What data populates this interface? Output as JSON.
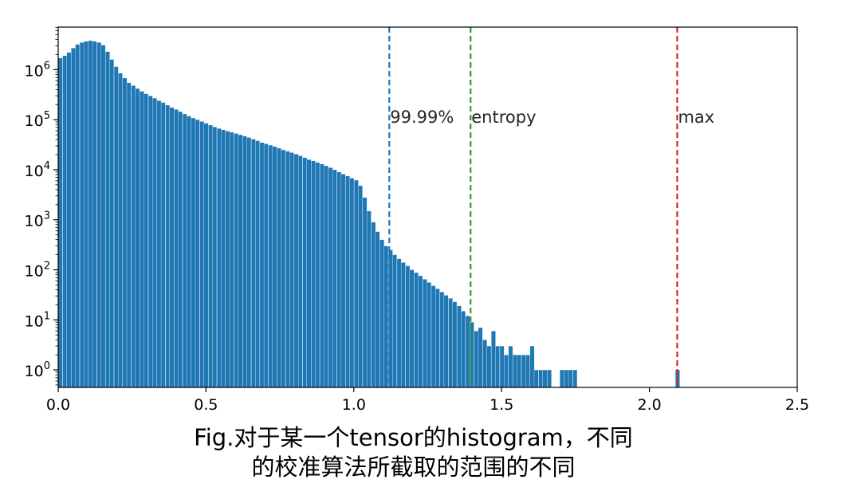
{
  "chart_data": {
    "type": "bar",
    "yscale": "log",
    "xlim": [
      0.0,
      2.5
    ],
    "ylim_log10": [
      -0.35,
      6.85
    ],
    "bin_width": 0.0145,
    "x_ticks": [
      "0.0",
      "0.5",
      "1.0",
      "1.5",
      "2.0",
      "2.5"
    ],
    "x_tick_values": [
      0.0,
      0.5,
      1.0,
      1.5,
      2.0,
      2.5
    ],
    "y_ticks": [
      {
        "base": "10",
        "exp": "0",
        "value": 0
      },
      {
        "base": "10",
        "exp": "1",
        "value": 1
      },
      {
        "base": "10",
        "exp": "2",
        "value": 2
      },
      {
        "base": "10",
        "exp": "3",
        "value": 3
      },
      {
        "base": "10",
        "exp": "4",
        "value": 4
      },
      {
        "base": "10",
        "exp": "5",
        "value": 5
      },
      {
        "base": "10",
        "exp": "6",
        "value": 6
      }
    ],
    "bar_color": "#1f77b4",
    "bins": [
      [
        0.0,
        1700000
      ],
      [
        0.015,
        1900000
      ],
      [
        0.029,
        2200000
      ],
      [
        0.044,
        2700000
      ],
      [
        0.058,
        3200000
      ],
      [
        0.073,
        3500000
      ],
      [
        0.087,
        3700000
      ],
      [
        0.102,
        3800000
      ],
      [
        0.116,
        3700000
      ],
      [
        0.131,
        3500000
      ],
      [
        0.145,
        3100000
      ],
      [
        0.16,
        2300000
      ],
      [
        0.174,
        1600000
      ],
      [
        0.189,
        1150000
      ],
      [
        0.203,
        850000
      ],
      [
        0.218,
        680000
      ],
      [
        0.232,
        550000
      ],
      [
        0.247,
        480000
      ],
      [
        0.261,
        420000
      ],
      [
        0.276,
        370000
      ],
      [
        0.29,
        330000
      ],
      [
        0.305,
        300000
      ],
      [
        0.319,
        270000
      ],
      [
        0.334,
        240000
      ],
      [
        0.348,
        220000
      ],
      [
        0.363,
        195000
      ],
      [
        0.377,
        175000
      ],
      [
        0.392,
        160000
      ],
      [
        0.406,
        145000
      ],
      [
        0.421,
        130000
      ],
      [
        0.435,
        118000
      ],
      [
        0.45,
        108000
      ],
      [
        0.464,
        100000
      ],
      [
        0.479,
        92000
      ],
      [
        0.493,
        85000
      ],
      [
        0.508,
        78000
      ],
      [
        0.522,
        72000
      ],
      [
        0.537,
        67000
      ],
      [
        0.551,
        63000
      ],
      [
        0.566,
        59000
      ],
      [
        0.58,
        56000
      ],
      [
        0.595,
        53000
      ],
      [
        0.609,
        50000
      ],
      [
        0.624,
        47000
      ],
      [
        0.638,
        44000
      ],
      [
        0.653,
        41000
      ],
      [
        0.667,
        38000
      ],
      [
        0.682,
        35000
      ],
      [
        0.696,
        33000
      ],
      [
        0.711,
        31000
      ],
      [
        0.725,
        29000
      ],
      [
        0.74,
        27000
      ],
      [
        0.754,
        25000
      ],
      [
        0.769,
        23500
      ],
      [
        0.783,
        22000
      ],
      [
        0.798,
        20500
      ],
      [
        0.812,
        19000
      ],
      [
        0.827,
        17500
      ],
      [
        0.841,
        16000
      ],
      [
        0.856,
        15000
      ],
      [
        0.87,
        14000
      ],
      [
        0.885,
        13000
      ],
      [
        0.899,
        12000
      ],
      [
        0.914,
        11000
      ],
      [
        0.928,
        10000
      ],
      [
        0.943,
        9000
      ],
      [
        0.957,
        8200
      ],
      [
        0.972,
        7500
      ],
      [
        0.986,
        6800
      ],
      [
        1.001,
        6200
      ],
      [
        1.015,
        4800
      ],
      [
        1.03,
        2800
      ],
      [
        1.044,
        1500
      ],
      [
        1.059,
        900
      ],
      [
        1.073,
        580
      ],
      [
        1.088,
        400
      ],
      [
        1.102,
        300
      ],
      [
        1.117,
        250
      ],
      [
        1.131,
        200
      ],
      [
        1.146,
        165
      ],
      [
        1.16,
        140
      ],
      [
        1.175,
        120
      ],
      [
        1.189,
        100
      ],
      [
        1.204,
        88
      ],
      [
        1.218,
        76
      ],
      [
        1.233,
        65
      ],
      [
        1.247,
        56
      ],
      [
        1.262,
        48
      ],
      [
        1.276,
        42
      ],
      [
        1.291,
        36
      ],
      [
        1.305,
        31
      ],
      [
        1.32,
        27
      ],
      [
        1.334,
        23
      ],
      [
        1.349,
        19
      ],
      [
        1.363,
        15
      ],
      [
        1.378,
        12
      ],
      [
        1.392,
        9
      ],
      [
        1.407,
        6
      ],
      [
        1.421,
        7
      ],
      [
        1.436,
        4
      ],
      [
        1.45,
        3
      ],
      [
        1.465,
        6
      ],
      [
        1.479,
        3
      ],
      [
        1.494,
        3
      ],
      [
        1.508,
        2
      ],
      [
        1.523,
        3
      ],
      [
        1.538,
        2
      ],
      [
        1.552,
        2
      ],
      [
        1.567,
        2
      ],
      [
        1.581,
        2
      ],
      [
        1.596,
        3
      ],
      [
        1.61,
        1
      ],
      [
        1.625,
        1
      ],
      [
        1.639,
        1
      ],
      [
        1.654,
        1
      ],
      [
        1.697,
        1
      ],
      [
        1.712,
        1
      ],
      [
        1.726,
        1
      ],
      [
        1.741,
        1
      ],
      [
        2.088,
        1
      ]
    ],
    "annotations": [
      {
        "label": "99.99%",
        "x": 1.12,
        "color": "#1f77b4"
      },
      {
        "label": "entropy",
        "x": 1.395,
        "color": "#2ca02c"
      },
      {
        "label": "max",
        "x": 2.094,
        "color": "#d62728"
      }
    ]
  },
  "caption": {
    "line1": "Fig.对于某一个tensor的histogram，不同",
    "line2": "的校准算法所截取的范围的不同"
  }
}
